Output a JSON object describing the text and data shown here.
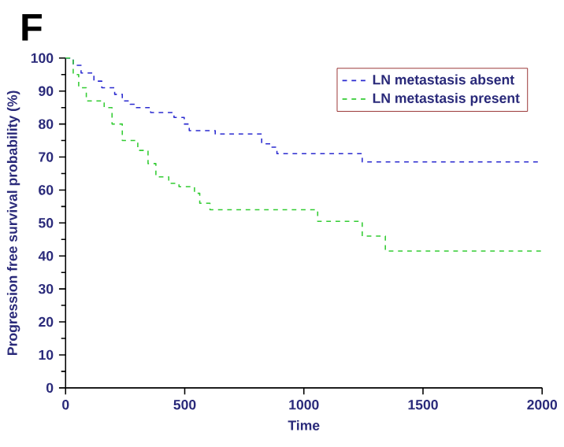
{
  "chart_data": {
    "type": "step",
    "title": "F",
    "xlabel": "Time",
    "ylabel": "Progression free survival probability (%)",
    "xlim": [
      0,
      2000
    ],
    "ylim": [
      0,
      100
    ],
    "xticks": [
      0,
      500,
      1000,
      1500,
      2000
    ],
    "yticks": [
      0,
      10,
      20,
      30,
      40,
      50,
      60,
      70,
      80,
      90,
      100
    ],
    "legend": "top right",
    "line_style": "dashed",
    "grid": false,
    "series": [
      {
        "name": "LN metastasis absent",
        "color": "#2b2bd0",
        "x": [
          0,
          32,
          65,
          119,
          152,
          206,
          238,
          271,
          292,
          357,
          455,
          498,
          519,
          628,
          823,
          866,
          887,
          1245,
          2000
        ],
        "values": [
          100,
          97.8,
          95.5,
          93,
          91,
          89,
          87,
          86,
          85,
          83.5,
          82,
          80,
          78,
          77,
          74,
          73,
          71,
          68.5,
          68.5
        ]
      },
      {
        "name": "LN metastasis present",
        "color": "#33cc33",
        "x": [
          0,
          32,
          55,
          87,
          162,
          195,
          238,
          303,
          346,
          379,
          433,
          476,
          541,
          563,
          606,
          1058,
          1245,
          1342,
          2000
        ],
        "values": [
          100,
          95,
          91,
          87,
          85,
          80,
          75,
          72,
          68,
          64,
          62,
          61,
          59,
          56,
          54,
          50.5,
          46,
          41.5,
          41.5
        ]
      }
    ]
  }
}
